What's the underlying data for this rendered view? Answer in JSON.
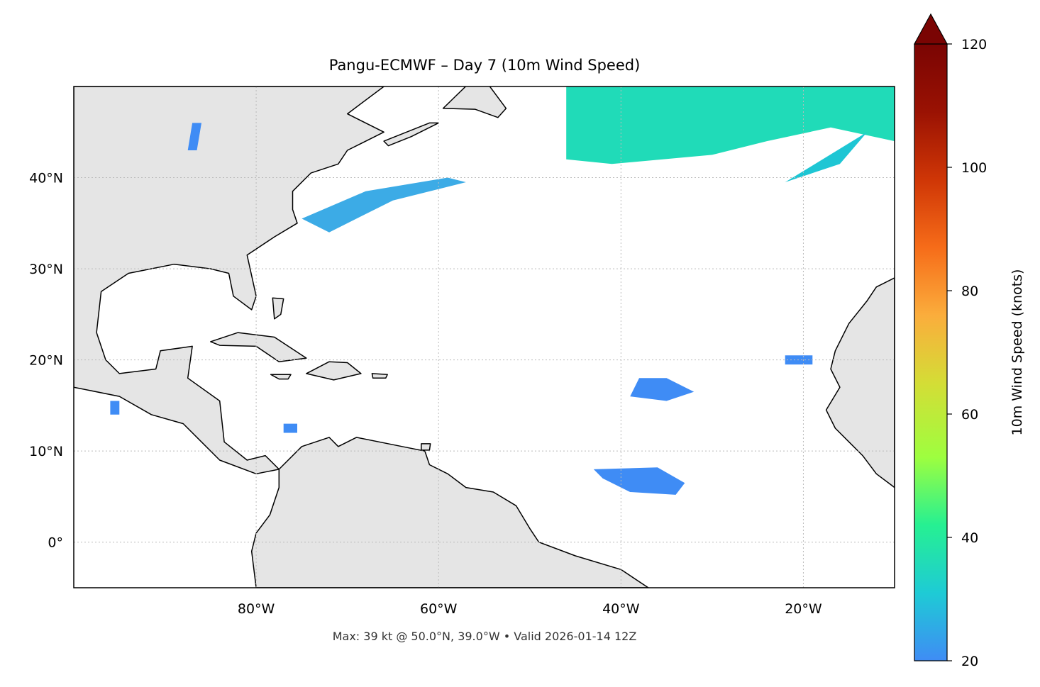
{
  "title": "Pangu-ECMWF – Day 7 (10m Wind Speed)",
  "footer": "Max: 39 kt @ 50.0°N, 39.0°W • Valid 2026-01-14 12Z",
  "map": {
    "lon_range": [
      -100,
      -10
    ],
    "lat_range": [
      -5,
      50
    ],
    "gridlines": true,
    "lat_labels": [
      {
        "lat": 40,
        "label": "40°N"
      },
      {
        "lat": 30,
        "label": "30°N"
      },
      {
        "lat": 20,
        "label": "20°N"
      },
      {
        "lat": 10,
        "label": "10°N"
      },
      {
        "lat": 0,
        "label": "0°"
      }
    ],
    "lon_labels": [
      {
        "lon": -80,
        "label": "80°W"
      },
      {
        "lon": -60,
        "label": "60°W"
      },
      {
        "lon": -40,
        "label": "40°W"
      },
      {
        "lon": -20,
        "label": "20°W"
      }
    ],
    "land_color": "#e5e5e5",
    "ocean_color": "#ffffff"
  },
  "colorbar": {
    "label": "10m Wind Speed (knots)",
    "min": 20,
    "max": 120,
    "extend": "max",
    "ticks": [
      {
        "value": 20,
        "label": "20"
      },
      {
        "value": 40,
        "label": "40"
      },
      {
        "value": 60,
        "label": "60"
      },
      {
        "value": 80,
        "label": "80"
      },
      {
        "value": 100,
        "label": "100"
      },
      {
        "value": 120,
        "label": "120"
      }
    ],
    "colormap": [
      "#3f8cf5",
      "#1ecbd5",
      "#26f092",
      "#9efe3f",
      "#d4dd36",
      "#fbad3c",
      "#f66c19",
      "#cf3606",
      "#9a1203",
      "#7a0403"
    ]
  },
  "wind_regions": [
    {
      "name": "north-atlantic-jet",
      "color": "#20dbb8",
      "outline_lonlat": [
        [
          -46,
          50
        ],
        [
          -10,
          50
        ],
        [
          -10,
          44
        ],
        [
          -17,
          45.5
        ],
        [
          -24,
          44
        ],
        [
          -30,
          42.5
        ],
        [
          -41,
          41.5
        ],
        [
          -46,
          42
        ],
        [
          -46,
          46
        ]
      ]
    },
    {
      "name": "azores-streak",
      "color": "#1ec6d4",
      "outline_lonlat": [
        [
          -22,
          39.5
        ],
        [
          -13,
          45
        ],
        [
          -16,
          41.5
        ]
      ]
    },
    {
      "name": "us-east-coast-jet",
      "color": "#3cabe6",
      "outline_lonlat": [
        [
          -75,
          35.5
        ],
        [
          -68,
          38.5
        ],
        [
          -59,
          40
        ],
        [
          -57,
          39.5
        ],
        [
          -65,
          37.5
        ],
        [
          -72,
          34
        ]
      ]
    },
    {
      "name": "cape-verde-west-patch",
      "color": "#3f8cf5",
      "outline_lonlat": [
        [
          -39,
          16
        ],
        [
          -35,
          15.5
        ],
        [
          -32,
          16.5
        ],
        [
          -35,
          18
        ],
        [
          -38,
          18
        ]
      ]
    },
    {
      "name": "east-atlantic-patch",
      "color": "#3f8cf5",
      "outline_lonlat": [
        [
          -22,
          19.5
        ],
        [
          -19,
          19.5
        ],
        [
          -19,
          20.5
        ],
        [
          -22,
          20.5
        ]
      ]
    },
    {
      "name": "equatorial-patch",
      "color": "#3f8cf5",
      "outline_lonlat": [
        [
          -43,
          8
        ],
        [
          -36,
          8.2
        ],
        [
          -33,
          6.5
        ],
        [
          -34,
          5.2
        ],
        [
          -39,
          5.5
        ],
        [
          -42,
          7
        ]
      ]
    },
    {
      "name": "caribbean-patch",
      "color": "#3f8cf5",
      "outline_lonlat": [
        [
          -77,
          12
        ],
        [
          -75.5,
          12
        ],
        [
          -75.5,
          13
        ],
        [
          -77,
          13
        ]
      ]
    },
    {
      "name": "pacific-patch",
      "color": "#3f8cf5",
      "outline_lonlat": [
        [
          -96,
          14
        ],
        [
          -95,
          14
        ],
        [
          -95,
          15.5
        ],
        [
          -96,
          15.5
        ]
      ]
    },
    {
      "name": "great-lakes-patch",
      "color": "#3f8cf5",
      "outline_lonlat": [
        [
          -87.5,
          43
        ],
        [
          -87,
          46
        ],
        [
          -86,
          46
        ],
        [
          -86.5,
          43
        ]
      ]
    }
  ],
  "land_outlines": [
    {
      "name": "north-america",
      "outline_lonlat": [
        [
          -100,
          50
        ],
        [
          -66,
          50
        ],
        [
          -70,
          47
        ],
        [
          -66,
          45
        ],
        [
          -70,
          43
        ],
        [
          -71,
          41.5
        ],
        [
          -74,
          40.5
        ],
        [
          -76,
          38.5
        ],
        [
          -76,
          36.5
        ],
        [
          -75.5,
          35
        ],
        [
          -78,
          33.5
        ],
        [
          -81,
          31.5
        ],
        [
          -80,
          27
        ],
        [
          -80.5,
          25.5
        ],
        [
          -82.5,
          27
        ],
        [
          -83,
          29.5
        ],
        [
          -85,
          30
        ],
        [
          -89,
          30.5
        ],
        [
          -94,
          29.5
        ],
        [
          -97,
          27.5
        ],
        [
          -97.5,
          23
        ],
        [
          -96.5,
          20
        ],
        [
          -95,
          18.5
        ],
        [
          -91,
          19
        ],
        [
          -90.5,
          21
        ],
        [
          -87,
          21.5
        ],
        [
          -87.5,
          18
        ],
        [
          -84,
          15.5
        ],
        [
          -83.5,
          11
        ],
        [
          -81,
          9
        ],
        [
          -79,
          9.5
        ],
        [
          -77.5,
          8
        ],
        [
          -80,
          7.5
        ],
        [
          -84,
          9
        ],
        [
          -86,
          11
        ],
        [
          -88,
          13
        ],
        [
          -91.5,
          14
        ],
        [
          -95,
          16
        ],
        [
          -100,
          17
        ]
      ]
    },
    {
      "name": "south-america",
      "outline_lonlat": [
        [
          -77.5,
          8
        ],
        [
          -75,
          10.5
        ],
        [
          -72,
          11.5
        ],
        [
          -71,
          10.5
        ],
        [
          -69,
          11.5
        ],
        [
          -64,
          10.5
        ],
        [
          -61.5,
          10
        ],
        [
          -61,
          8.5
        ],
        [
          -59,
          7.5
        ],
        [
          -57,
          6
        ],
        [
          -54,
          5.5
        ],
        [
          -51.5,
          4
        ],
        [
          -50,
          1.5
        ],
        [
          -49,
          0
        ],
        [
          -45,
          -1.5
        ],
        [
          -40,
          -3
        ],
        [
          -37,
          -5
        ],
        [
          -80,
          -5
        ],
        [
          -80.5,
          -1
        ],
        [
          -80,
          1
        ],
        [
          -78.5,
          3
        ],
        [
          -77.5,
          6
        ]
      ]
    },
    {
      "name": "africa",
      "outline_lonlat": [
        [
          -10,
          29
        ],
        [
          -12,
          28
        ],
        [
          -13,
          26.5
        ],
        [
          -15,
          24
        ],
        [
          -16.5,
          21
        ],
        [
          -17,
          19
        ],
        [
          -16,
          17
        ],
        [
          -17.5,
          14.5
        ],
        [
          -16.5,
          12.5
        ],
        [
          -15,
          11
        ],
        [
          -13.5,
          9.5
        ],
        [
          -12,
          7.5
        ],
        [
          -10,
          6
        ],
        [
          -10,
          29
        ]
      ]
    },
    {
      "name": "cuba",
      "outline_lonlat": [
        [
          -85,
          22
        ],
        [
          -82,
          23
        ],
        [
          -78,
          22.5
        ],
        [
          -74.5,
          20.2
        ],
        [
          -77.5,
          19.8
        ],
        [
          -80,
          21.5
        ],
        [
          -84,
          21.6
        ]
      ]
    },
    {
      "name": "hispaniola",
      "outline_lonlat": [
        [
          -74.5,
          18.5
        ],
        [
          -72,
          19.8
        ],
        [
          -70,
          19.7
        ],
        [
          -68.5,
          18.5
        ],
        [
          -71.5,
          17.8
        ]
      ]
    },
    {
      "name": "jamaica",
      "outline_lonlat": [
        [
          -78.4,
          18.4
        ],
        [
          -76.2,
          18.4
        ],
        [
          -76.5,
          17.9
        ],
        [
          -77.5,
          17.9
        ]
      ]
    },
    {
      "name": "puerto-rico",
      "outline_lonlat": [
        [
          -67.3,
          18.5
        ],
        [
          -65.6,
          18.4
        ],
        [
          -65.8,
          18
        ],
        [
          -67.2,
          18
        ]
      ]
    },
    {
      "name": "newfoundland",
      "outline_lonlat": [
        [
          -59.5,
          47.6
        ],
        [
          -55.5,
          51.5
        ],
        [
          -52.6,
          47.6
        ],
        [
          -53.5,
          46.6
        ],
        [
          -56,
          47.5
        ]
      ]
    },
    {
      "name": "nova-scotia",
      "outline_lonlat": [
        [
          -66,
          44
        ],
        [
          -61,
          46
        ],
        [
          -60,
          46
        ],
        [
          -63,
          44.5
        ],
        [
          -65.5,
          43.5
        ]
      ]
    },
    {
      "name": "bahamas",
      "outline_lonlat": [
        [
          -78.2,
          26.8
        ],
        [
          -77,
          26.7
        ],
        [
          -77.3,
          25
        ],
        [
          -78,
          24.5
        ]
      ]
    },
    {
      "name": "trinidad",
      "outline_lonlat": [
        [
          -61.9,
          10.8
        ],
        [
          -60.9,
          10.8
        ],
        [
          -61,
          10.1
        ],
        [
          -61.9,
          10.1
        ]
      ]
    }
  ]
}
